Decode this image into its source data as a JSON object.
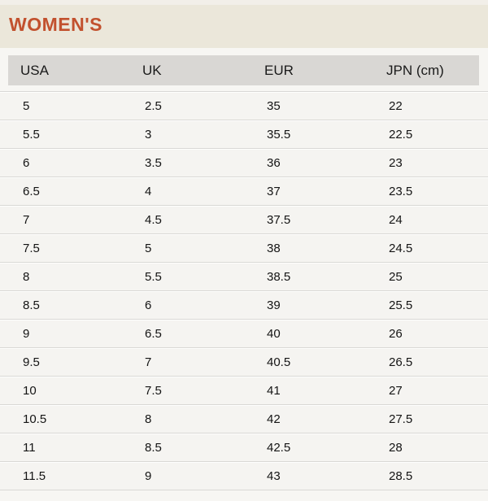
{
  "section": {
    "title": "WOMEN'S"
  },
  "size_table": {
    "columns": [
      "USA",
      "UK",
      "EUR",
      "JPN (cm)"
    ],
    "rows": [
      [
        "5",
        "2.5",
        "35",
        "22"
      ],
      [
        "5.5",
        "3",
        "35.5",
        "22.5"
      ],
      [
        "6",
        "3.5",
        "36",
        "23"
      ],
      [
        "6.5",
        "4",
        "37",
        "23.5"
      ],
      [
        "7",
        "4.5",
        "37.5",
        "24"
      ],
      [
        "7.5",
        "5",
        "38",
        "24.5"
      ],
      [
        "8",
        "5.5",
        "38.5",
        "25"
      ],
      [
        "8.5",
        "6",
        "39",
        "25.5"
      ],
      [
        "9",
        "6.5",
        "40",
        "26"
      ],
      [
        "9.5",
        "7",
        "40.5",
        "26.5"
      ],
      [
        "10",
        "7.5",
        "41",
        "27"
      ],
      [
        "10.5",
        "8",
        "42",
        "27.5"
      ],
      [
        "11",
        "8.5",
        "42.5",
        "28"
      ],
      [
        "11.5",
        "9",
        "43",
        "28.5"
      ]
    ]
  },
  "colors": {
    "title_accent": "#c2512e",
    "band_bg": "#ebe7da",
    "table_bg": "#f7f6f3",
    "header_bg": "#d9d7d4",
    "row_bg": "#f5f4f1",
    "divider": "#d9d8d5"
  }
}
